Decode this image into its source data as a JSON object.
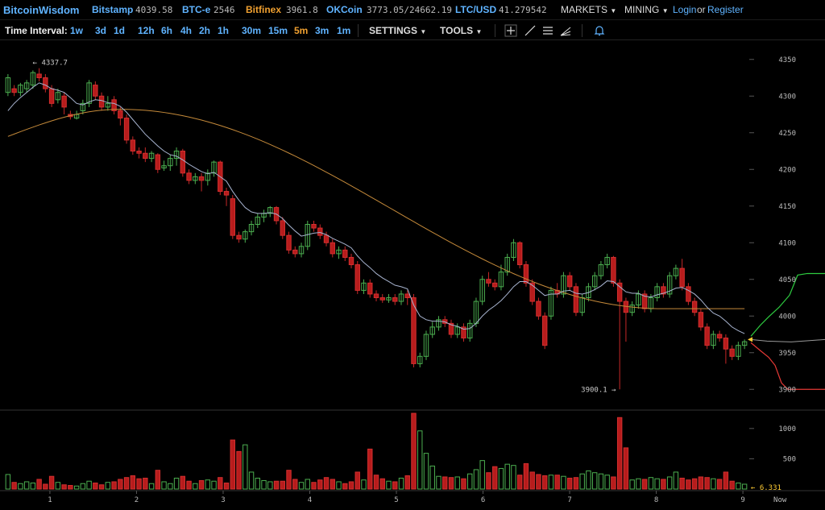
{
  "brand": "BitcoinWisdom",
  "exchanges": [
    {
      "name": "Bitstamp",
      "price": "4039.58"
    },
    {
      "name": "BTC-e",
      "price": "2546"
    },
    {
      "name": "Bitfinex",
      "price": "3961.8"
    },
    {
      "name": "OKCoin",
      "price": "3773.05/24662.19"
    },
    {
      "name": "LTC/USD",
      "price": "41.279542"
    }
  ],
  "nav": {
    "markets": "MARKETS",
    "mining": "MINING",
    "login": "Login",
    "or": "or",
    "register": "Register"
  },
  "toolbar": {
    "label": "Time Interval:",
    "intervals": [
      "1w",
      "3d",
      "1d",
      "12h",
      "6h",
      "4h",
      "2h",
      "1h",
      "30m",
      "15m",
      "5m",
      "3m",
      "1m"
    ],
    "active_interval": "5m",
    "settings": "SETTINGS",
    "tools": "TOOLS",
    "tool_icons": [
      "crosshair-icon",
      "line-icon",
      "fib-lines-icon",
      "fan-icon",
      "alert-bell-icon"
    ]
  },
  "chart_data": {
    "type": "candlestick",
    "y_ticks": [
      "4350",
      "4300",
      "4250",
      "4200",
      "4150",
      "4100",
      "4050",
      "4000",
      "3950",
      "3900"
    ],
    "x_ticks": [
      "1",
      "2",
      "3",
      "4",
      "5",
      "6",
      "7",
      "8",
      "9",
      "Now"
    ],
    "vol_ticks": [
      "1000",
      "500"
    ],
    "high_label": "4337.7",
    "low_label": "3900.1",
    "current_volume": "6.331",
    "ylim": [
      3875,
      4375
    ],
    "vol_lim": [
      0,
      1250
    ],
    "candles": [
      [
        4305,
        4325,
        4300,
        4330,
        240
      ],
      [
        4310,
        4305,
        4300,
        4315,
        110
      ],
      [
        4305,
        4315,
        4300,
        4318,
        90
      ],
      [
        4310,
        4318,
        4305,
        4322,
        120
      ],
      [
        4315,
        4332,
        4310,
        4335,
        100
      ],
      [
        4330,
        4325,
        4320,
        4338,
        160
      ],
      [
        4325,
        4310,
        4305,
        4330,
        80
      ],
      [
        4310,
        4290,
        4285,
        4315,
        210
      ],
      [
        4295,
        4305,
        4290,
        4310,
        110
      ],
      [
        4300,
        4285,
        4275,
        4305,
        70
      ],
      [
        4275,
        4272,
        4268,
        4280,
        60
      ],
      [
        4270,
        4275,
        4268,
        4280,
        50
      ],
      [
        4280,
        4290,
        4275,
        4295,
        90
      ],
      [
        4290,
        4318,
        4285,
        4322,
        130
      ],
      [
        4315,
        4300,
        4295,
        4320,
        100
      ],
      [
        4300,
        4285,
        4280,
        4305,
        70
      ],
      [
        4285,
        4290,
        4280,
        4300,
        110
      ],
      [
        4295,
        4280,
        4275,
        4300,
        120
      ],
      [
        4280,
        4270,
        4260,
        4285,
        160
      ],
      [
        4270,
        4240,
        4235,
        4275,
        190
      ],
      [
        4240,
        4225,
        4220,
        4245,
        220
      ],
      [
        4225,
        4222,
        4215,
        4230,
        170
      ],
      [
        4222,
        4215,
        4210,
        4230,
        180
      ],
      [
        4215,
        4222,
        4210,
        4225,
        90
      ],
      [
        4220,
        4200,
        4195,
        4222,
        310
      ],
      [
        4202,
        4205,
        4198,
        4212,
        120
      ],
      [
        4205,
        4215,
        4198,
        4220,
        90
      ],
      [
        4215,
        4225,
        4205,
        4230,
        180
      ],
      [
        4225,
        4195,
        4190,
        4228,
        210
      ],
      [
        4195,
        4185,
        4180,
        4200,
        130
      ],
      [
        4185,
        4190,
        4180,
        4195,
        90
      ],
      [
        4190,
        4185,
        4170,
        4195,
        140
      ],
      [
        4185,
        4195,
        4178,
        4200,
        150
      ],
      [
        4195,
        4210,
        4190,
        4212,
        130
      ],
      [
        4210,
        4170,
        4165,
        4212,
        190
      ],
      [
        4170,
        4165,
        4150,
        4175,
        100
      ],
      [
        4160,
        4110,
        4105,
        4165,
        810
      ],
      [
        4110,
        4105,
        4100,
        4115,
        620
      ],
      [
        4105,
        4115,
        4100,
        4118,
        730
      ],
      [
        4115,
        4125,
        4110,
        4130,
        280
      ],
      [
        4125,
        4135,
        4120,
        4140,
        180
      ],
      [
        4135,
        4140,
        4128,
        4145,
        140
      ],
      [
        4140,
        4148,
        4135,
        4150,
        120
      ],
      [
        4148,
        4130,
        4125,
        4150,
        130
      ],
      [
        4130,
        4110,
        4105,
        4135,
        130
      ],
      [
        4110,
        4090,
        4085,
        4115,
        310
      ],
      [
        4090,
        4085,
        4080,
        4095,
        160
      ],
      [
        4085,
        4095,
        4080,
        4100,
        110
      ],
      [
        4095,
        4125,
        4090,
        4130,
        160
      ],
      [
        4125,
        4120,
        4115,
        4130,
        110
      ],
      [
        4120,
        4110,
        4105,
        4125,
        150
      ],
      [
        4110,
        4100,
        4095,
        4115,
        190
      ],
      [
        4100,
        4085,
        4080,
        4105,
        160
      ],
      [
        4085,
        4090,
        4078,
        4095,
        120
      ],
      [
        4090,
        4080,
        4075,
        4095,
        90
      ],
      [
        4080,
        4070,
        4065,
        4085,
        120
      ],
      [
        4070,
        4035,
        4030,
        4075,
        280
      ],
      [
        4035,
        4045,
        4030,
        4050,
        150
      ],
      [
        4045,
        4030,
        4025,
        4050,
        660
      ],
      [
        4030,
        4025,
        4020,
        4035,
        230
      ],
      [
        4025,
        4022,
        4018,
        4030,
        170
      ],
      [
        4022,
        4025,
        4018,
        4030,
        130
      ],
      [
        4025,
        4020,
        4015,
        4030,
        120
      ],
      [
        4020,
        4030,
        4015,
        4035,
        180
      ],
      [
        4030,
        4025,
        4015,
        4035,
        220
      ],
      [
        4025,
        3935,
        3930,
        4030,
        1250
      ],
      [
        3935,
        3945,
        3930,
        3950,
        960
      ],
      [
        3945,
        3975,
        3940,
        3980,
        590
      ],
      [
        3975,
        3985,
        3970,
        3992,
        380
      ],
      [
        3985,
        3995,
        3980,
        4000,
        210
      ],
      [
        3995,
        3990,
        3985,
        4000,
        200
      ],
      [
        3990,
        3975,
        3970,
        3995,
        190
      ],
      [
        3975,
        3985,
        3970,
        3990,
        200
      ],
      [
        3985,
        3970,
        3965,
        3990,
        170
      ],
      [
        3970,
        3990,
        3965,
        3995,
        250
      ],
      [
        3990,
        4020,
        3985,
        4025,
        320
      ],
      [
        4020,
        4050,
        4015,
        4055,
        470
      ],
      [
        4050,
        4045,
        4040,
        4060,
        270
      ],
      [
        4045,
        4040,
        4035,
        4050,
        370
      ],
      [
        4040,
        4060,
        4035,
        4070,
        340
      ],
      [
        4060,
        4080,
        4055,
        4085,
        410
      ],
      [
        4080,
        4100,
        4075,
        4105,
        390
      ],
      [
        4100,
        4070,
        4065,
        4102,
        230
      ],
      [
        4070,
        4045,
        4040,
        4075,
        420
      ],
      [
        4045,
        4020,
        4015,
        4050,
        280
      ],
      [
        4020,
        4000,
        3995,
        4025,
        240
      ],
      [
        4000,
        3960,
        3955,
        4005,
        220
      ],
      [
        4000,
        4035,
        3995,
        4040,
        230
      ],
      [
        4035,
        4030,
        4025,
        4045,
        230
      ],
      [
        4030,
        4055,
        4025,
        4060,
        210
      ],
      [
        4055,
        4040,
        4035,
        4060,
        180
      ],
      [
        4040,
        4005,
        4000,
        4045,
        190
      ],
      [
        4005,
        4025,
        4000,
        4030,
        250
      ],
      [
        4025,
        4040,
        4020,
        4045,
        300
      ],
      [
        4040,
        4055,
        4035,
        4060,
        270
      ],
      [
        4055,
        4070,
        4050,
        4075,
        250
      ],
      [
        4070,
        4080,
        4065,
        4085,
        230
      ],
      [
        4080,
        4045,
        4040,
        4082,
        200
      ],
      [
        4045,
        4020,
        3900,
        4050,
        1180
      ],
      [
        4020,
        4005,
        3965,
        4025,
        680
      ],
      [
        4005,
        4015,
        4000,
        4020,
        150
      ],
      [
        4015,
        4030,
        4010,
        4035,
        170
      ],
      [
        4030,
        4010,
        4005,
        4035,
        160
      ],
      [
        4010,
        4025,
        4005,
        4030,
        190
      ],
      [
        4025,
        4040,
        4020,
        4045,
        170
      ],
      [
        4040,
        4030,
        4025,
        4045,
        160
      ],
      [
        4030,
        4055,
        4025,
        4060,
        200
      ],
      [
        4055,
        4065,
        4050,
        4070,
        280
      ],
      [
        4065,
        4040,
        4035,
        4078,
        180
      ],
      [
        4040,
        4020,
        4015,
        4045,
        150
      ],
      [
        4020,
        4005,
        4000,
        4025,
        170
      ],
      [
        4005,
        3985,
        3980,
        4010,
        200
      ],
      [
        3985,
        3960,
        3955,
        3990,
        190
      ],
      [
        3960,
        3975,
        3955,
        3980,
        170
      ],
      [
        3975,
        3970,
        3965,
        3980,
        160
      ],
      [
        3970,
        3955,
        3935,
        3975,
        280
      ],
      [
        3955,
        3945,
        3940,
        3960,
        130
      ],
      [
        3945,
        3960,
        3940,
        3965,
        100
      ],
      [
        3960,
        3965,
        3955,
        3968,
        80
      ]
    ],
    "ema_fast": [
      4280,
      4290,
      4298,
      4305,
      4312,
      4318,
      4315,
      4310,
      4308,
      4305,
      4298,
      4290,
      4288,
      4292,
      4295,
      4294,
      4291,
      4290,
      4286,
      4278,
      4268,
      4258,
      4248,
      4240,
      4232,
      4225,
      4220,
      4218,
      4213,
      4207,
      4202,
      4197,
      4194,
      4196,
      4190,
      4184,
      4170,
      4158,
      4148,
      4142,
      4140,
      4140,
      4141,
      4139,
      4133,
      4124,
      4116,
      4109,
      4111,
      4113,
      4114,
      4111,
      4106,
      4102,
      4098,
      4093,
      4082,
      4073,
      4066,
      4058,
      4052,
      4047,
      4042,
      4040,
      4037,
      4015,
      4000,
      3995,
      3993,
      3993,
      3992,
      3988,
      3986,
      3982,
      3983,
      3990,
      4000,
      4008,
      4014,
      4021,
      4030,
      4040,
      4047,
      4047,
      4042,
      4035,
      4028,
      4030,
      4030,
      4034,
      4035,
      4031,
      4030,
      4032,
      4036,
      4041,
      4048,
      4047,
      4040,
      4033,
      4031,
      4031,
      4027,
      4026,
      4029,
      4031,
      4034,
      4038,
      4039,
      4035,
      4030,
      4022,
      4012,
      4004,
      4000,
      3993,
      3985,
      3980,
      3976
    ]
  },
  "slow_line": {
    "start": 4245,
    "peak_at": 0.15,
    "peak": 4282,
    "end": 4010
  },
  "depth": {
    "bid_end": 3900,
    "ask_end": 4058,
    "mid": 3968
  }
}
